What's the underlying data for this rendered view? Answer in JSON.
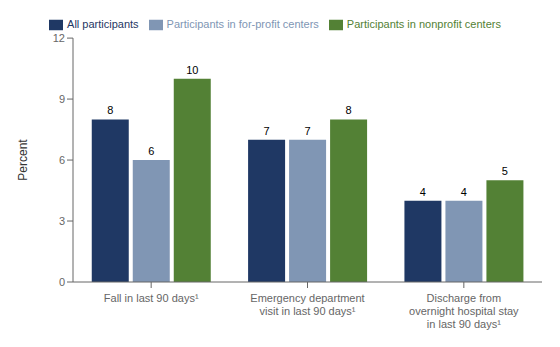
{
  "chart_data": {
    "type": "bar",
    "categories": [
      "Fall in last 90 days¹",
      "Emergency department\nvisit in last 90 days¹",
      "Discharge from\novernight hospital stay\nin last 90 days¹"
    ],
    "series": [
      {
        "name": "All participants",
        "color": "#1f3864",
        "values": [
          8,
          7,
          4
        ]
      },
      {
        "name": "Participants in for-profit centers",
        "color": "#8096b4",
        "values": [
          6,
          7,
          4
        ]
      },
      {
        "name": "Participants in nonprofit centers",
        "color": "#538135",
        "values": [
          10,
          8,
          5
        ]
      }
    ],
    "ylabel": "Percent",
    "ylim": [
      0,
      12
    ],
    "yticks": [
      0,
      3,
      6,
      9,
      12
    ],
    "grid": false,
    "legend": "top",
    "data_labels": true
  }
}
